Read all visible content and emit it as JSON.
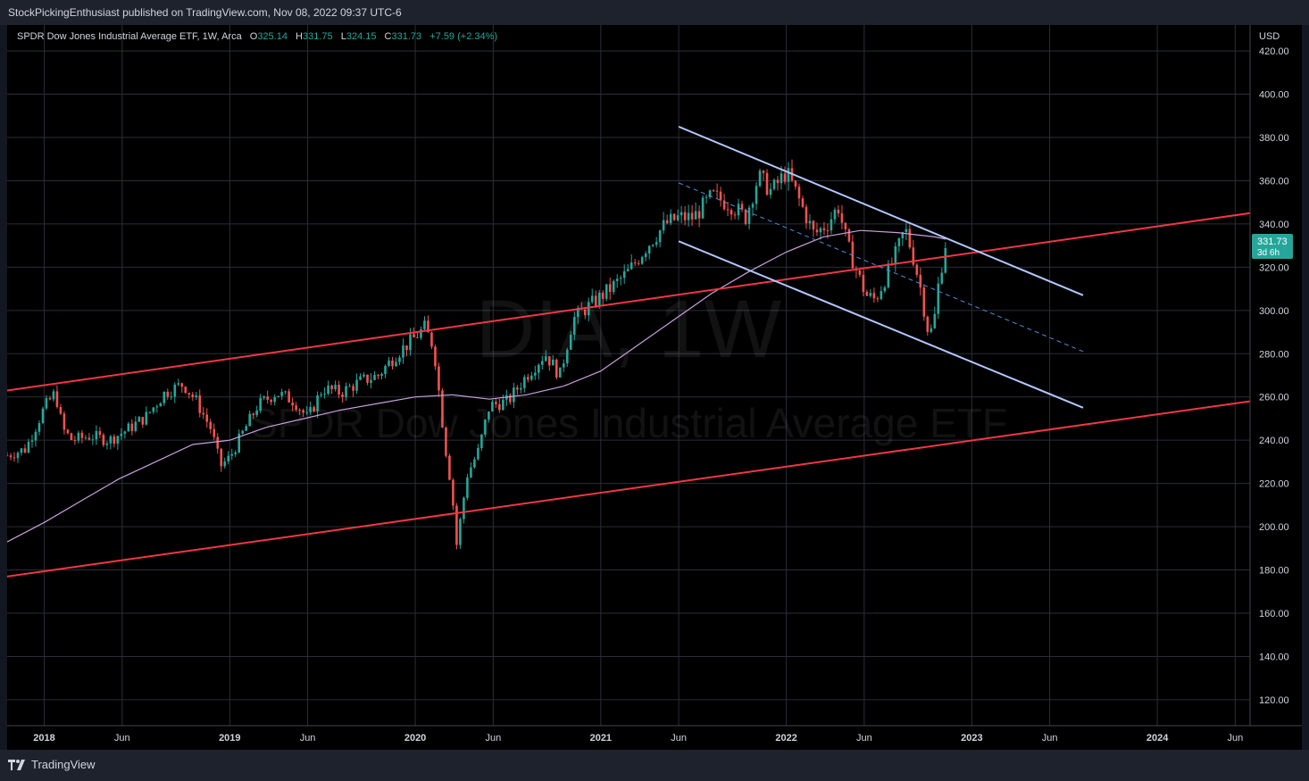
{
  "header": {
    "publisher_text": "StockPickingEnthusiast published on TradingView.com, Nov 08, 2022 09:37 UTC-6"
  },
  "legend": {
    "symbol": "SPDR Dow Jones Industrial Average ETF, 1W, Arca",
    "o_label": "O",
    "o_value": "325.14",
    "h_label": "H",
    "h_value": "331.75",
    "l_label": "L",
    "l_value": "324.15",
    "c_label": "C",
    "c_value": "331.73",
    "change": "+7.59 (+2.34%)"
  },
  "price_badge": {
    "price": "331.73",
    "countdown": "3d 6h"
  },
  "watermark": {
    "ticker": "DIA, 1W",
    "name": "SPDR Dow Jones Industrial Average ETF"
  },
  "footer": {
    "brand": "TradingView"
  },
  "colors": {
    "background": "#000000",
    "grid": "#2a2e39",
    "up": "#26a69a",
    "down": "#ef5350",
    "text": "#d1d4dc",
    "red_trend": "#f23645",
    "channel": "#b2c7ff",
    "ma": "#c9a0dc"
  },
  "chart_data": {
    "type": "candlestick",
    "currency": "USD",
    "y_ticks": [
      "120.00",
      "140.00",
      "160.00",
      "180.00",
      "200.00",
      "220.00",
      "240.00",
      "260.00",
      "280.00",
      "300.00",
      "320.00",
      "340.00",
      "360.00",
      "380.00",
      "400.00",
      "420.00"
    ],
    "ylim": [
      108,
      432
    ],
    "x_ticks": [
      {
        "label": "2018",
        "t": 2018.0
      },
      {
        "label": "Jun",
        "t": 2018.42
      },
      {
        "label": "2019",
        "t": 2019.0
      },
      {
        "label": "Jun",
        "t": 2019.42
      },
      {
        "label": "2020",
        "t": 2020.0
      },
      {
        "label": "Jun",
        "t": 2020.42
      },
      {
        "label": "2021",
        "t": 2021.0
      },
      {
        "label": "Jun",
        "t": 2021.42
      },
      {
        "label": "2022",
        "t": 2022.0
      },
      {
        "label": "Jun",
        "t": 2022.42
      },
      {
        "label": "2023",
        "t": 2023.0
      },
      {
        "label": "Jun",
        "t": 2023.42
      },
      {
        "label": "2024",
        "t": 2024.0
      },
      {
        "label": "Jun",
        "t": 2024.42
      }
    ],
    "xlim": [
      2017.8,
      2024.5
    ],
    "price_path": [
      [
        2017.8,
        233
      ],
      [
        2017.9,
        236
      ],
      [
        2018.0,
        255
      ],
      [
        2018.06,
        262
      ],
      [
        2018.1,
        245
      ],
      [
        2018.15,
        240
      ],
      [
        2018.25,
        242
      ],
      [
        2018.35,
        240
      ],
      [
        2018.45,
        245
      ],
      [
        2018.55,
        251
      ],
      [
        2018.65,
        262
      ],
      [
        2018.75,
        266
      ],
      [
        2018.82,
        258
      ],
      [
        2018.9,
        245
      ],
      [
        2018.95,
        228
      ],
      [
        2019.0,
        232
      ],
      [
        2019.08,
        245
      ],
      [
        2019.15,
        256
      ],
      [
        2019.25,
        262
      ],
      [
        2019.35,
        258
      ],
      [
        2019.42,
        250
      ],
      [
        2019.5,
        264
      ],
      [
        2019.6,
        262
      ],
      [
        2019.7,
        267
      ],
      [
        2019.8,
        270
      ],
      [
        2019.9,
        280
      ],
      [
        2019.98,
        286
      ],
      [
        2020.05,
        292
      ],
      [
        2020.1,
        283
      ],
      [
        2020.16,
        238
      ],
      [
        2020.2,
        215
      ],
      [
        2020.22,
        190
      ],
      [
        2020.28,
        224
      ],
      [
        2020.34,
        235
      ],
      [
        2020.4,
        256
      ],
      [
        2020.5,
        258
      ],
      [
        2020.6,
        270
      ],
      [
        2020.7,
        280
      ],
      [
        2020.78,
        270
      ],
      [
        2020.85,
        296
      ],
      [
        2020.95,
        303
      ],
      [
        2021.05,
        310
      ],
      [
        2021.15,
        318
      ],
      [
        2021.25,
        330
      ],
      [
        2021.35,
        340
      ],
      [
        2021.42,
        343
      ],
      [
        2021.5,
        343
      ],
      [
        2021.6,
        353
      ],
      [
        2021.7,
        349
      ],
      [
        2021.78,
        343
      ],
      [
        2021.85,
        362
      ],
      [
        2021.92,
        355
      ],
      [
        2022.0,
        364
      ],
      [
        2022.05,
        355
      ],
      [
        2022.1,
        345
      ],
      [
        2022.15,
        335
      ],
      [
        2022.22,
        340
      ],
      [
        2022.28,
        348
      ],
      [
        2022.33,
        330
      ],
      [
        2022.38,
        318
      ],
      [
        2022.43,
        307
      ],
      [
        2022.48,
        305
      ],
      [
        2022.55,
        318
      ],
      [
        2022.6,
        328
      ],
      [
        2022.64,
        338
      ],
      [
        2022.68,
        326
      ],
      [
        2022.72,
        312
      ],
      [
        2022.76,
        292
      ],
      [
        2022.79,
        290
      ],
      [
        2022.82,
        312
      ],
      [
        2022.86,
        332
      ]
    ],
    "ma_path": [
      [
        2017.8,
        193
      ],
      [
        2018.0,
        202
      ],
      [
        2018.2,
        212
      ],
      [
        2018.4,
        222
      ],
      [
        2018.6,
        230
      ],
      [
        2018.8,
        238
      ],
      [
        2019.0,
        240
      ],
      [
        2019.2,
        246
      ],
      [
        2019.4,
        250
      ],
      [
        2019.6,
        254
      ],
      [
        2019.8,
        257
      ],
      [
        2020.0,
        260
      ],
      [
        2020.2,
        261
      ],
      [
        2020.4,
        259
      ],
      [
        2020.6,
        261
      ],
      [
        2020.8,
        265
      ],
      [
        2021.0,
        272
      ],
      [
        2021.2,
        284
      ],
      [
        2021.4,
        296
      ],
      [
        2021.6,
        308
      ],
      [
        2021.8,
        318
      ],
      [
        2022.0,
        327
      ],
      [
        2022.2,
        334
      ],
      [
        2022.4,
        337
      ],
      [
        2022.6,
        336
      ],
      [
        2022.8,
        334
      ],
      [
        2022.86,
        333
      ]
    ],
    "lines": [
      {
        "kind": "red-upper-trend",
        "from": [
          2017.8,
          263
        ],
        "to": [
          2024.5,
          345
        ]
      },
      {
        "kind": "red-lower-trend",
        "from": [
          2017.8,
          177
        ],
        "to": [
          2024.5,
          258
        ]
      },
      {
        "kind": "channel-top",
        "from": [
          2021.42,
          385
        ],
        "to": [
          2023.6,
          307
        ]
      },
      {
        "kind": "channel-bottom",
        "from": [
          2021.42,
          332
        ],
        "to": [
          2023.6,
          255
        ]
      },
      {
        "kind": "channel-mid",
        "from": [
          2021.42,
          359
        ],
        "to": [
          2023.6,
          281
        ]
      }
    ]
  }
}
